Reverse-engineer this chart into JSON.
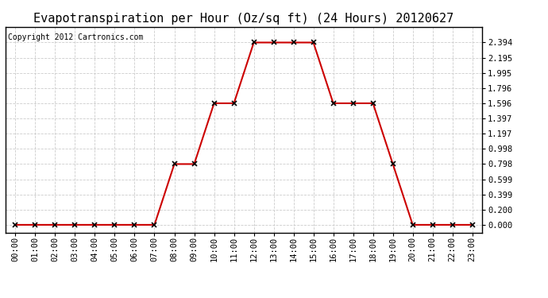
{
  "title": "Evapotranspiration per Hour (Oz/sq ft) (24 Hours) 20120627",
  "copyright": "Copyright 2012 Cartronics.com",
  "x_labels": [
    "00:00",
    "01:00",
    "02:00",
    "03:00",
    "04:00",
    "05:00",
    "06:00",
    "07:00",
    "08:00",
    "09:00",
    "10:00",
    "11:00",
    "12:00",
    "13:00",
    "14:00",
    "15:00",
    "16:00",
    "17:00",
    "18:00",
    "19:00",
    "20:00",
    "21:00",
    "22:00",
    "23:00"
  ],
  "y_values": [
    0.0,
    0.0,
    0.0,
    0.0,
    0.0,
    0.0,
    0.0,
    0.0,
    0.798,
    0.798,
    1.596,
    1.596,
    2.394,
    2.394,
    2.394,
    2.394,
    1.596,
    1.596,
    1.596,
    0.798,
    0.0,
    0.0,
    0.0,
    0.0
  ],
  "yticks": [
    0.0,
    0.2,
    0.399,
    0.599,
    0.798,
    0.998,
    1.197,
    1.397,
    1.596,
    1.796,
    1.995,
    2.195,
    2.394
  ],
  "line_color": "#cc0000",
  "marker": "x",
  "marker_color": "#000000",
  "marker_size": 4,
  "marker_linewidth": 1.2,
  "background_color": "#ffffff",
  "grid_color": "#cccccc",
  "title_fontsize": 11,
  "tick_fontsize": 7.5,
  "copyright_fontsize": 7
}
